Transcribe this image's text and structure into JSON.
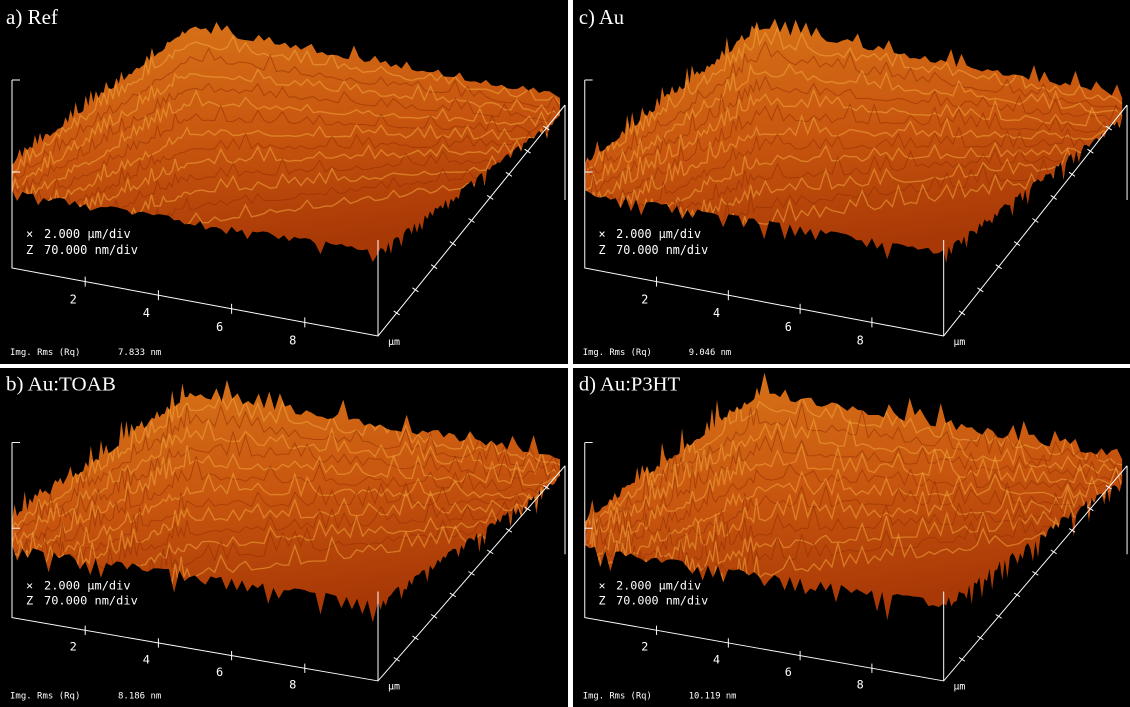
{
  "panels": [
    {
      "label": "a) Ref",
      "x_scale_label": "×",
      "x_scale": "2.000 µm/div",
      "z_scale_label": "Z",
      "z_scale": "70.000 nm/div",
      "x_ticks": [
        "2",
        "4",
        "6",
        "8"
      ],
      "unit": "µm",
      "rms_label": "Img. Rms (Rq)",
      "rms_value": "7.833 nm"
    },
    {
      "label": "c) Au",
      "x_scale_label": "×",
      "x_scale": "2.000 µm/div",
      "z_scale_label": "Z",
      "z_scale": "70.000 nm/div",
      "x_ticks": [
        "2",
        "4",
        "6",
        "8"
      ],
      "unit": "µm",
      "rms_label": "Img. Rms (Rq)",
      "rms_value": "9.046 nm"
    },
    {
      "label": "b) Au:TOAB",
      "x_scale_label": "×",
      "x_scale": "2.000 µm/div",
      "z_scale_label": "Z",
      "z_scale": "70.000 nm/div",
      "x_ticks": [
        "2",
        "4",
        "6",
        "8"
      ],
      "unit": "µm",
      "rms_label": "Img. Rms (Rq)",
      "rms_value": "8.186 nm"
    },
    {
      "label": "d) Au:P3HT",
      "x_scale_label": "×",
      "x_scale": "2.000 µm/div",
      "z_scale_label": "Z",
      "z_scale": "70.000 nm/div",
      "x_ticks": [
        "2",
        "4",
        "6",
        "8"
      ],
      "unit": "µm",
      "rms_label": "Img. Rms (Rq)",
      "rms_value": "10.119 nm"
    }
  ]
}
